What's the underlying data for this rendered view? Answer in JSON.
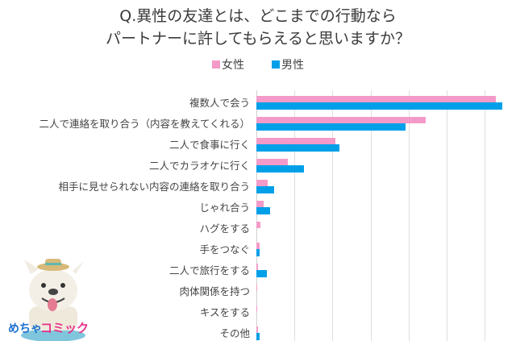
{
  "chart_data": {
    "type": "bar",
    "orientation": "horizontal",
    "title": "Q.異性の友達とは、どこまでの行動なら パートナーに許してもらえると思いますか？",
    "title_lines": [
      "Q.異性の友達とは、どこまでの行動なら",
      "パートナーに許してもらえると思いますか？"
    ],
    "xlabel": "",
    "ylabel": "",
    "xlim": [
      0,
      65
    ],
    "grid": true,
    "gridline_step": 10,
    "legend_position": "top",
    "categories": [
      "複数人で会う",
      "二人で連絡を取り合う（内容を教えてくれる）",
      "二人で食事に行く",
      "二人でカラオケに行く",
      "相手に見せられない内容の連絡を取り合う",
      "じゃれ合う",
      "ハグをする",
      "手をつなぐ",
      "二人で旅行をする",
      "肉体関係を持つ",
      "キスをする",
      "その他"
    ],
    "series": [
      {
        "name": "女性",
        "color": "#f49ac8",
        "values": [
          62.9,
          44.5,
          20.8,
          8.3,
          3.0,
          1.9,
          1.1,
          0.8,
          0.4,
          0.2,
          0.2,
          0.4
        ]
      },
      {
        "name": "男性",
        "color": "#00a0e9",
        "values": [
          64.6,
          39.2,
          21.8,
          12.5,
          4.7,
          3.6,
          0,
          0.8,
          2.8,
          0,
          0,
          0.8
        ]
      }
    ]
  },
  "legend": {
    "female": {
      "label": "女性",
      "color": "#f49ac8"
    },
    "male": {
      "label": "男性",
      "color": "#00a0e9"
    }
  },
  "logo": {
    "text_left": "めちゃ",
    "text_right": "コミック"
  }
}
